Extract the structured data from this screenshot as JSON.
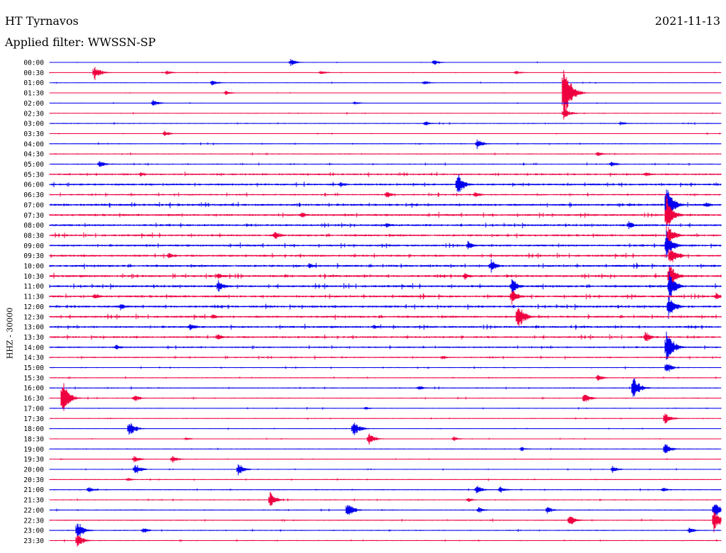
{
  "header": {
    "station_title": "HT Tyrnavos",
    "date": "2021-11-13",
    "filter_label": "Applied filter: WWSSN-SP",
    "channel_label": "HHZ - 30000"
  },
  "chart_data": {
    "type": "line",
    "title": "HT Tyrnavos",
    "ylabel": "HHZ - 30000",
    "categories": [
      "00:00",
      "00:30",
      "01:00",
      "01:30",
      "02:00",
      "02:30",
      "03:00",
      "03:30",
      "04:00",
      "04:30",
      "05:00",
      "05:30",
      "06:00",
      "06:30",
      "07:00",
      "07:30",
      "08:00",
      "08:30",
      "09:00",
      "09:30",
      "10:00",
      "10:30",
      "11:00",
      "11:30",
      "12:00",
      "12:30",
      "13:00",
      "13:30",
      "14:00",
      "14:30",
      "15:00",
      "15:30",
      "16:00",
      "16:30",
      "17:00",
      "17:30",
      "18:00",
      "18:30",
      "19:00",
      "19:30",
      "20:00",
      "20:30",
      "21:00",
      "21:30",
      "22:00",
      "22:30",
      "23:00",
      "23:30"
    ],
    "colors": [
      "#0000ee",
      "#ee0040"
    ],
    "noise": [
      0.5,
      0.5,
      0.5,
      0.5,
      0.5,
      0.5,
      0.8,
      0.6,
      0.8,
      0.8,
      0.9,
      1.3,
      1.5,
      1.2,
      1.6,
      1.5,
      1.5,
      1.5,
      1.5,
      1.5,
      1.6,
      1.6,
      1.6,
      1.6,
      1.6,
      1.5,
      1.5,
      1.4,
      1.2,
      1.0,
      0.8,
      0.8,
      0.8,
      0.8,
      0.7,
      0.6,
      0.6,
      0.6,
      0.6,
      0.6,
      0.7,
      0.7,
      0.8,
      0.8,
      0.8,
      0.8,
      0.8,
      0.8
    ],
    "events": [
      {
        "line": 0,
        "x": 410,
        "a": 6
      },
      {
        "line": 0,
        "x": 612,
        "a": 5
      },
      {
        "line": 1,
        "x": 133,
        "a": 12
      },
      {
        "line": 1,
        "x": 235,
        "a": 4
      },
      {
        "line": 1,
        "x": 452,
        "a": 4
      },
      {
        "line": 1,
        "x": 727,
        "a": 4
      },
      {
        "line": 2,
        "x": 299,
        "a": 5
      },
      {
        "line": 2,
        "x": 598,
        "a": 4
      },
      {
        "line": 3,
        "x": 318,
        "a": 4
      },
      {
        "line": 3,
        "x": 795,
        "a": 60
      },
      {
        "line": 4,
        "x": 216,
        "a": 6
      },
      {
        "line": 4,
        "x": 500,
        "a": 3
      },
      {
        "line": 5,
        "x": 795,
        "a": 10
      },
      {
        "line": 6,
        "x": 600,
        "a": 4
      },
      {
        "line": 6,
        "x": 875,
        "a": 4
      },
      {
        "line": 7,
        "x": 232,
        "a": 5
      },
      {
        "line": 8,
        "x": 673,
        "a": 8
      },
      {
        "line": 9,
        "x": 843,
        "a": 5
      },
      {
        "line": 10,
        "x": 140,
        "a": 6
      },
      {
        "line": 10,
        "x": 862,
        "a": 5
      },
      {
        "line": 11,
        "x": 198,
        "a": 4
      },
      {
        "line": 11,
        "x": 911,
        "a": 5
      },
      {
        "line": 12,
        "x": 645,
        "a": 20
      },
      {
        "line": 12,
        "x": 480,
        "a": 5
      },
      {
        "line": 13,
        "x": 545,
        "a": 6
      },
      {
        "line": 13,
        "x": 670,
        "a": 5
      },
      {
        "line": 14,
        "x": 940,
        "a": 40
      },
      {
        "line": 14,
        "x": 995,
        "a": 6
      },
      {
        "line": 15,
        "x": 425,
        "a": 6
      },
      {
        "line": 15,
        "x": 940,
        "a": 30
      },
      {
        "line": 16,
        "x": 887,
        "a": 7
      },
      {
        "line": 16,
        "x": 545,
        "a": 5
      },
      {
        "line": 17,
        "x": 387,
        "a": 8
      },
      {
        "line": 17,
        "x": 943,
        "a": 20
      },
      {
        "line": 18,
        "x": 660,
        "a": 7
      },
      {
        "line": 18,
        "x": 940,
        "a": 25
      },
      {
        "line": 19,
        "x": 238,
        "a": 6
      },
      {
        "line": 19,
        "x": 945,
        "a": 20
      },
      {
        "line": 20,
        "x": 693,
        "a": 10
      },
      {
        "line": 20,
        "x": 436,
        "a": 5
      },
      {
        "line": 21,
        "x": 308,
        "a": 6
      },
      {
        "line": 21,
        "x": 655,
        "a": 6
      },
      {
        "line": 21,
        "x": 944,
        "a": 25
      },
      {
        "line": 22,
        "x": 308,
        "a": 10
      },
      {
        "line": 22,
        "x": 722,
        "a": 14
      },
      {
        "line": 22,
        "x": 944,
        "a": 25
      },
      {
        "line": 23,
        "x": 133,
        "a": 6
      },
      {
        "line": 23,
        "x": 722,
        "a": 12
      },
      {
        "line": 23,
        "x": 1010,
        "a": 6
      },
      {
        "line": 24,
        "x": 170,
        "a": 6
      },
      {
        "line": 24,
        "x": 943,
        "a": 20
      },
      {
        "line": 25,
        "x": 730,
        "a": 25
      },
      {
        "line": 25,
        "x": 300,
        "a": 5
      },
      {
        "line": 26,
        "x": 268,
        "a": 6
      },
      {
        "line": 26,
        "x": 527,
        "a": 5
      },
      {
        "line": 27,
        "x": 910,
        "a": 10
      },
      {
        "line": 27,
        "x": 307,
        "a": 6
      },
      {
        "line": 28,
        "x": 163,
        "a": 5
      },
      {
        "line": 28,
        "x": 940,
        "a": 30
      },
      {
        "line": 29,
        "x": 624,
        "a": 4
      },
      {
        "line": 30,
        "x": 940,
        "a": 10
      },
      {
        "line": 31,
        "x": 843,
        "a": 6
      },
      {
        "line": 32,
        "x": 893,
        "a": 20
      },
      {
        "line": 32,
        "x": 590,
        "a": 4
      },
      {
        "line": 33,
        "x": 88,
        "a": 30
      },
      {
        "line": 33,
        "x": 190,
        "a": 6
      },
      {
        "line": 33,
        "x": 824,
        "a": 10
      },
      {
        "line": 34,
        "x": 515,
        "a": 3
      },
      {
        "line": 35,
        "x": 938,
        "a": 10
      },
      {
        "line": 36,
        "x": 182,
        "a": 14
      },
      {
        "line": 36,
        "x": 498,
        "a": 14
      },
      {
        "line": 37,
        "x": 520,
        "a": 10
      },
      {
        "line": 37,
        "x": 262,
        "a": 3
      },
      {
        "line": 37,
        "x": 640,
        "a": 4
      },
      {
        "line": 38,
        "x": 938,
        "a": 10
      },
      {
        "line": 38,
        "x": 735,
        "a": 4
      },
      {
        "line": 39,
        "x": 189,
        "a": 6
      },
      {
        "line": 39,
        "x": 243,
        "a": 6
      },
      {
        "line": 40,
        "x": 190,
        "a": 10
      },
      {
        "line": 40,
        "x": 336,
        "a": 10
      },
      {
        "line": 40,
        "x": 864,
        "a": 6
      },
      {
        "line": 41,
        "x": 180,
        "a": 3
      },
      {
        "line": 42,
        "x": 125,
        "a": 5
      },
      {
        "line": 42,
        "x": 672,
        "a": 8
      },
      {
        "line": 42,
        "x": 705,
        "a": 6
      },
      {
        "line": 42,
        "x": 935,
        "a": 4
      },
      {
        "line": 43,
        "x": 381,
        "a": 12
      },
      {
        "line": 43,
        "x": 660,
        "a": 4
      },
      {
        "line": 44,
        "x": 490,
        "a": 14
      },
      {
        "line": 44,
        "x": 675,
        "a": 5
      },
      {
        "line": 44,
        "x": 772,
        "a": 6
      },
      {
        "line": 44,
        "x": 1007,
        "a": 14
      },
      {
        "line": 45,
        "x": 803,
        "a": 10
      },
      {
        "line": 45,
        "x": 1007,
        "a": 20
      },
      {
        "line": 46,
        "x": 109,
        "a": 16
      },
      {
        "line": 46,
        "x": 202,
        "a": 5
      },
      {
        "line": 46,
        "x": 972,
        "a": 6
      },
      {
        "line": 47,
        "x": 109,
        "a": 12
      }
    ]
  }
}
